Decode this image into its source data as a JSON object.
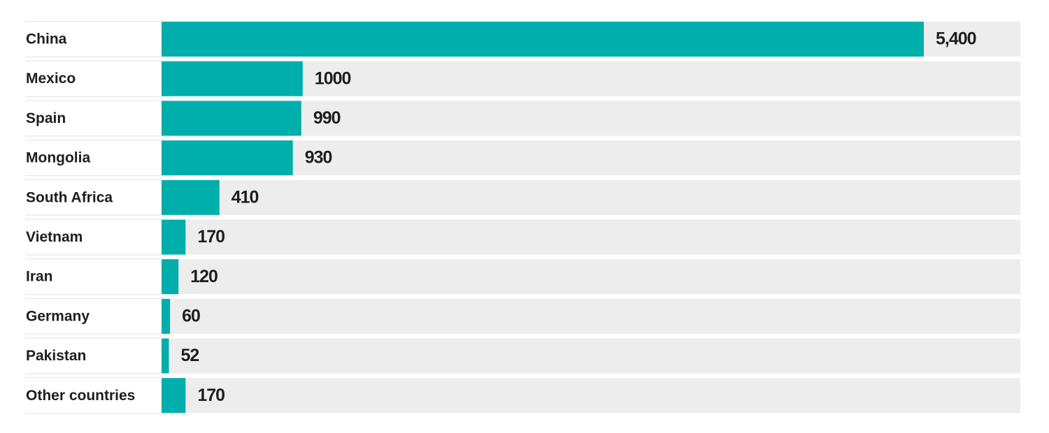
{
  "chart_data": {
    "type": "bar",
    "categories": [
      "China",
      "Mexico",
      "Spain",
      "Mongolia",
      "South Africa",
      "Vietnam",
      "Iran",
      "Germany",
      "Pakistan",
      "Other countries"
    ],
    "values": [
      5400,
      1000,
      990,
      930,
      410,
      170,
      120,
      60,
      52,
      170
    ],
    "value_labels": [
      "5,400",
      "1000",
      "990",
      "930",
      "410",
      "170",
      "120",
      "60",
      "52",
      "170"
    ],
    "color": "#00aeac"
  }
}
